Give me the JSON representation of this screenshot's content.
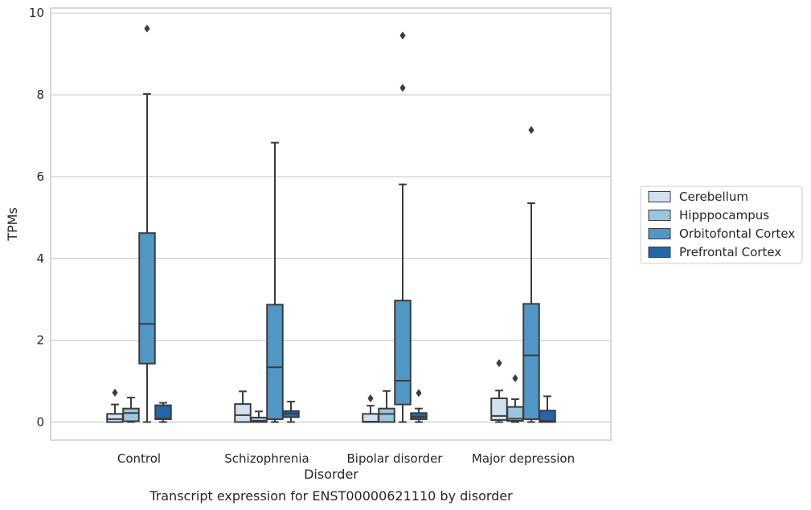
{
  "chart_data": {
    "type": "box",
    "xlabel": "Disorder",
    "ylabel": "TPMs",
    "caption": "Transcript expression for ENST00000621110 by disorder",
    "ylim": [
      -0.45,
      10.1
    ],
    "yticks": [
      0,
      2,
      4,
      6,
      8,
      10
    ],
    "grid": "horizontal",
    "legend_position": "right",
    "categories": [
      "Control",
      "Schizophrenia",
      "Bipolar disorder",
      "Major depression"
    ],
    "series": [
      {
        "name": "Cerebellum",
        "color": "#d1e1f0",
        "boxes": [
          {
            "whislo": 0.0,
            "q1": 0.0,
            "med": 0.07,
            "q3": 0.2,
            "whishi": 0.43,
            "fliers": [
              0.72
            ]
          },
          {
            "whislo": 0.0,
            "q1": 0.0,
            "med": 0.17,
            "q3": 0.44,
            "whishi": 0.75,
            "fliers": []
          },
          {
            "whislo": 0.0,
            "q1": 0.0,
            "med": 0.01,
            "q3": 0.2,
            "whishi": 0.4,
            "fliers": [
              0.58
            ]
          },
          {
            "whislo": 0.0,
            "q1": 0.05,
            "med": 0.15,
            "q3": 0.58,
            "whishi": 0.77,
            "fliers": [
              1.44
            ]
          }
        ]
      },
      {
        "name": "Hipppocampus",
        "color": "#9ac6de",
        "boxes": [
          {
            "whislo": 0.0,
            "q1": 0.02,
            "med": 0.22,
            "q3": 0.33,
            "whishi": 0.6,
            "fliers": []
          },
          {
            "whislo": 0.0,
            "q1": 0.0,
            "med": 0.03,
            "q3": 0.11,
            "whishi": 0.26,
            "fliers": []
          },
          {
            "whislo": 0.0,
            "q1": 0.0,
            "med": 0.2,
            "q3": 0.33,
            "whishi": 0.76,
            "fliers": []
          },
          {
            "whislo": 0.0,
            "q1": 0.03,
            "med": 0.08,
            "q3": 0.37,
            "whishi": 0.56,
            "fliers": [
              1.07
            ]
          }
        ]
      },
      {
        "name": "Orbitofontal Cortex",
        "color": "#5197c6",
        "boxes": [
          {
            "whislo": 0.0,
            "q1": 1.43,
            "med": 2.4,
            "q3": 4.62,
            "whishi": 8.02,
            "fliers": [
              9.62
            ]
          },
          {
            "whislo": 0.0,
            "q1": 0.07,
            "med": 1.34,
            "q3": 2.87,
            "whishi": 6.83,
            "fliers": []
          },
          {
            "whislo": 0.0,
            "q1": 0.43,
            "med": 1.01,
            "q3": 2.97,
            "whishi": 5.81,
            "fliers": [
              9.45,
              8.17
            ]
          },
          {
            "whislo": 0.0,
            "q1": 0.07,
            "med": 1.63,
            "q3": 2.89,
            "whishi": 5.35,
            "fliers": [
              7.14
            ]
          }
        ]
      },
      {
        "name": "Prefrontal Cortex",
        "color": "#2267a9",
        "boxes": [
          {
            "whislo": 0.0,
            "q1": 0.07,
            "med": 0.09,
            "q3": 0.41,
            "whishi": 0.47,
            "fliers": []
          },
          {
            "whislo": 0.0,
            "q1": 0.12,
            "med": 0.21,
            "q3": 0.27,
            "whishi": 0.5,
            "fliers": []
          },
          {
            "whislo": 0.0,
            "q1": 0.07,
            "med": 0.13,
            "q3": 0.22,
            "whishi": 0.33,
            "fliers": [
              0.71
            ]
          },
          {
            "whislo": 0.0,
            "q1": 0.0,
            "med": 0.03,
            "q3": 0.28,
            "whishi": 0.63,
            "fliers": []
          }
        ]
      }
    ]
  }
}
